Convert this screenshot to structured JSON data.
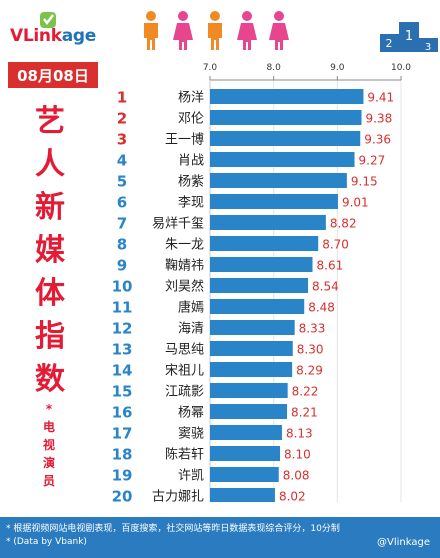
{
  "brand": {
    "name_prefix": "VLink",
    "name_suffix": "age"
  },
  "date_badge": "08月08日",
  "side_title": [
    "艺",
    "人",
    "新",
    "媒",
    "体",
    "指",
    "数"
  ],
  "side_subtitle": [
    "*",
    "电",
    "视",
    "演",
    "员"
  ],
  "footer": {
    "line1": "* 根据视频网站电视剧表现，百度搜索，社交网站等昨日数据表现综合评分，10分制",
    "line2": "* (Data by Vbank)"
  },
  "watermark": "@Vlinkage",
  "colors": {
    "bar": "#2a85c8",
    "rank_red": "#d9302f",
    "rank_blue": "#2a85c8",
    "value": "#d9302f",
    "accent": "#e31b35"
  },
  "chart_data": {
    "type": "bar",
    "orientation": "horizontal",
    "xlim": [
      7.0,
      10.0
    ],
    "xticks": [
      "7.0",
      "8.0",
      "9.0",
      "10.0"
    ],
    "ranks": [
      "1",
      "2",
      "3",
      "4",
      "5",
      "6",
      "7",
      "8",
      "9",
      "10",
      "11",
      "12",
      "13",
      "14",
      "15",
      "16",
      "17",
      "18",
      "19",
      "20"
    ],
    "categories": [
      "杨洋",
      "邓伦",
      "王一博",
      "肖战",
      "杨紫",
      "李现",
      "易烊千玺",
      "朱一龙",
      "鞠婧祎",
      "刘昊然",
      "唐嫣",
      "海清",
      "马思纯",
      "宋祖儿",
      "江疏影",
      "杨幂",
      "窦骁",
      "陈若轩",
      "许凯",
      "古力娜扎"
    ],
    "values": [
      9.41,
      9.38,
      9.36,
      9.27,
      9.15,
      9.01,
      8.82,
      8.7,
      8.61,
      8.54,
      8.48,
      8.33,
      8.3,
      8.29,
      8.22,
      8.21,
      8.13,
      8.1,
      8.08,
      8.02
    ],
    "value_labels": [
      "9.41",
      "9.38",
      "9.36",
      "9.27",
      "9.15",
      "9.01",
      "8.82",
      "8.70",
      "8.61",
      "8.54",
      "8.48",
      "8.33",
      "8.30",
      "8.29",
      "8.22",
      "8.21",
      "8.13",
      "8.10",
      "8.08",
      "8.02"
    ],
    "grid": true
  }
}
